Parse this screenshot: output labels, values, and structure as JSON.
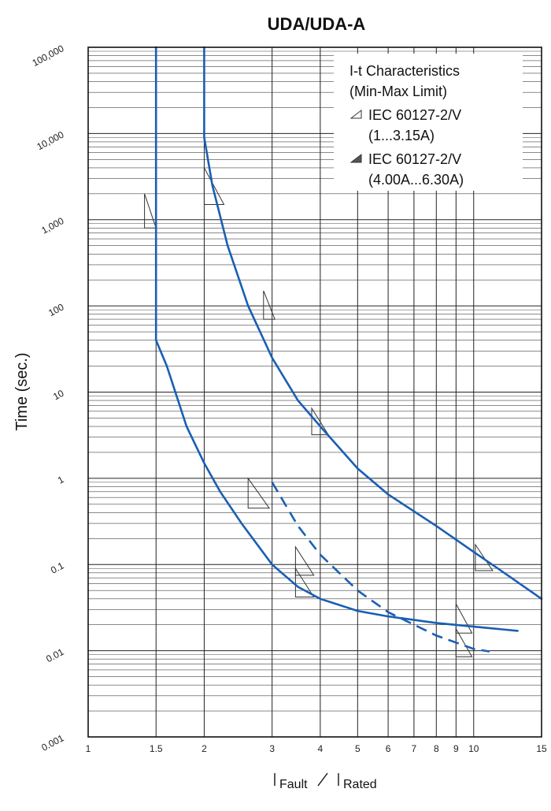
{
  "chart_data": {
    "type": "line",
    "title": "UDA/UDA-A",
    "ylabel": "Time (sec.)",
    "xlabel_fault": "Fault",
    "xlabel_rated": "Rated",
    "x_scale": "log",
    "y_scale": "log",
    "xlim": [
      1,
      15
    ],
    "ylim": [
      0.001,
      100000
    ],
    "x_tick_values": [
      1,
      1.5,
      2,
      3,
      4,
      5,
      6,
      7,
      8,
      9,
      10,
      15
    ],
    "x_tick_labels": [
      "1",
      "1.5",
      "2",
      "3",
      "4",
      "5",
      "6",
      "7",
      "8",
      "9",
      "10",
      "15"
    ],
    "y_tick_values": [
      100000,
      10000,
      1000,
      100,
      10,
      1,
      0.1,
      0.01,
      0.001
    ],
    "y_tick_labels": [
      "100,000",
      "10,000",
      "1,000",
      "100",
      "10",
      "1",
      "0.1",
      "0.01",
      "0.001"
    ],
    "grid": true,
    "legend": {
      "position": "top-right",
      "title_line1": "I-t Characteristics",
      "title_line2": "(Min-Max Limit)",
      "entries": [
        {
          "line1": "IEC 60127-2/V",
          "line2": "(1...3.15A)",
          "marker": "outline"
        },
        {
          "line1": "IEC 60127-2/V",
          "line2": "(4.00A...6.30A)",
          "marker": "filled"
        }
      ]
    },
    "series": [
      {
        "style": "solid",
        "points": [
          [
            1.5,
            100000
          ],
          [
            1.5,
            40
          ],
          [
            1.6,
            20
          ],
          [
            1.8,
            4
          ],
          [
            2.0,
            1.5
          ],
          [
            2.2,
            0.7
          ],
          [
            2.5,
            0.3
          ],
          [
            3.0,
            0.1
          ],
          [
            3.5,
            0.055
          ],
          [
            4.0,
            0.04
          ],
          [
            5.0,
            0.029
          ],
          [
            6.0,
            0.025
          ],
          [
            8.0,
            0.021
          ],
          [
            10.0,
            0.019
          ],
          [
            13.0,
            0.017
          ]
        ]
      },
      {
        "style": "solid",
        "points": [
          [
            2.0,
            100000
          ],
          [
            2.0,
            9000
          ],
          [
            2.1,
            2500
          ],
          [
            2.3,
            500
          ],
          [
            2.6,
            100
          ],
          [
            3.0,
            25
          ],
          [
            3.5,
            8
          ],
          [
            4.0,
            4
          ],
          [
            5.0,
            1.3
          ],
          [
            6.0,
            0.65
          ],
          [
            8.0,
            0.28
          ],
          [
            10.0,
            0.14
          ],
          [
            12.0,
            0.08
          ],
          [
            15.0,
            0.04
          ]
        ]
      },
      {
        "style": "dashed",
        "points": [
          [
            3.0,
            0.9
          ],
          [
            3.5,
            0.28
          ],
          [
            4.0,
            0.13
          ],
          [
            5.0,
            0.05
          ],
          [
            6.0,
            0.028
          ],
          [
            8.0,
            0.015
          ],
          [
            10.0,
            0.0105
          ],
          [
            11.0,
            0.0098
          ]
        ]
      }
    ]
  }
}
